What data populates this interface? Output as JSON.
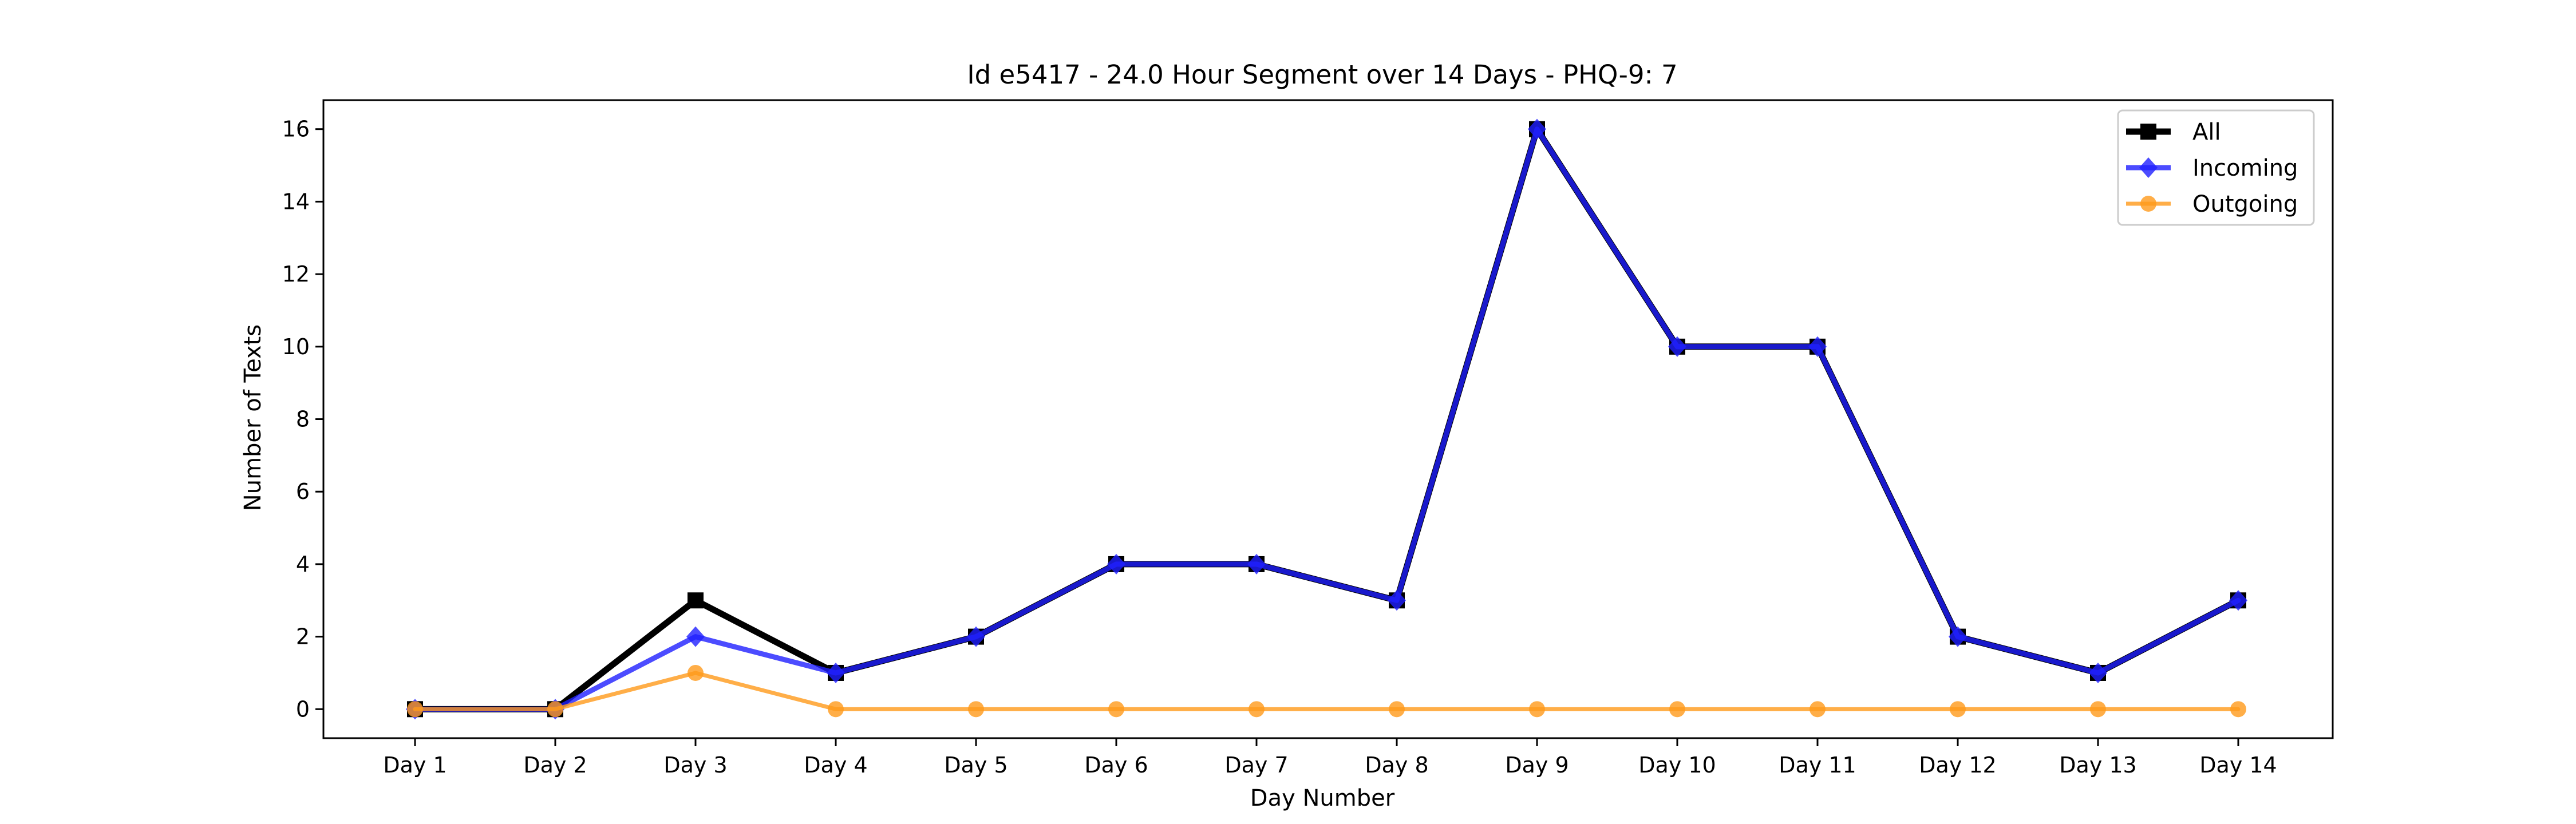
{
  "chart_data": {
    "type": "line",
    "title": "Id e5417 - 24.0 Hour Segment over 14 Days - PHQ-9: 7",
    "xlabel": "Day Number",
    "ylabel": "Number of Texts",
    "categories": [
      "Day 1",
      "Day 2",
      "Day 3",
      "Day 4",
      "Day 5",
      "Day 6",
      "Day 7",
      "Day 8",
      "Day 9",
      "Day 10",
      "Day 11",
      "Day 12",
      "Day 13",
      "Day 14"
    ],
    "ylim": [
      -0.8,
      16.8
    ],
    "yticks": [
      0,
      2,
      4,
      6,
      8,
      10,
      12,
      14,
      16
    ],
    "grid": false,
    "legend_position": "top-right",
    "series": [
      {
        "name": "All",
        "values": [
          0,
          0,
          3,
          1,
          2,
          4,
          4,
          3,
          16,
          10,
          10,
          2,
          1,
          3
        ],
        "color": "#000000",
        "marker": "square"
      },
      {
        "name": "Incoming",
        "values": [
          0,
          0,
          2,
          1,
          2,
          4,
          4,
          3,
          16,
          10,
          10,
          2,
          1,
          3
        ],
        "color": "#1f1fff",
        "marker": "diamond"
      },
      {
        "name": "Outgoing",
        "values": [
          0,
          0,
          1,
          0,
          0,
          0,
          0,
          0,
          0,
          0,
          0,
          0,
          0,
          0
        ],
        "color": "#ff9a1a",
        "marker": "circle"
      }
    ]
  }
}
